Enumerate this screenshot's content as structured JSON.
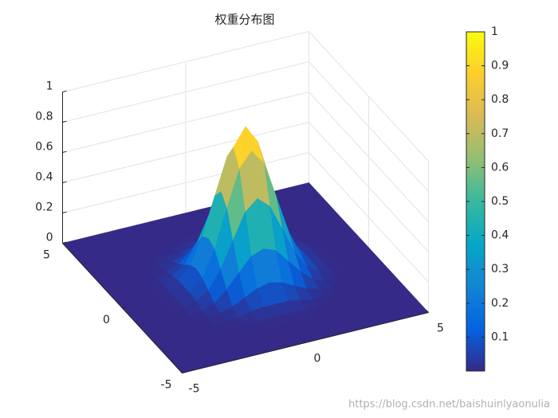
{
  "chart_data": {
    "type": "surface",
    "title": "权重分布图",
    "x": [
      -5,
      -4.5,
      -4,
      -3.5,
      -3,
      -2.5,
      -2,
      -1.5,
      -1,
      -0.5,
      0,
      0.5,
      1,
      1.5,
      2,
      2.5,
      3,
      3.5,
      4,
      4.5,
      5
    ],
    "y": [
      -5,
      -4.5,
      -4,
      -3.5,
      -3,
      -2.5,
      -2,
      -1.5,
      -1,
      -0.5,
      0,
      0.5,
      1,
      1.5,
      2,
      2.5,
      3,
      3.5,
      4,
      4.5,
      5
    ],
    "z": [
      [
        0,
        0,
        0,
        0,
        0,
        0,
        0,
        0,
        0,
        0,
        0,
        0,
        0,
        0,
        0,
        0,
        0,
        0,
        0,
        0,
        0
      ],
      [
        0,
        0,
        0,
        0,
        0,
        0,
        0,
        0,
        0,
        0,
        0,
        0,
        0,
        0,
        0,
        0,
        0,
        0,
        0,
        0,
        0
      ],
      [
        0,
        0,
        0,
        0,
        0,
        0,
        0,
        0,
        0,
        0,
        0,
        0,
        0,
        0,
        0,
        0,
        0,
        0,
        0,
        0,
        0
      ],
      [
        0,
        0,
        0,
        0,
        0,
        0,
        0,
        0,
        0,
        0,
        0,
        0,
        0,
        0,
        0,
        0,
        0,
        0,
        0,
        0,
        0
      ],
      [
        0,
        0,
        0,
        0,
        0,
        0,
        0,
        0,
        0.01,
        0.01,
        0.01,
        0.01,
        0.01,
        0,
        0,
        0,
        0,
        0,
        0,
        0,
        0
      ],
      [
        0,
        0,
        0,
        0,
        0,
        0,
        0.01,
        0.01,
        0.03,
        0.04,
        0.04,
        0.04,
        0.03,
        0.01,
        0.01,
        0,
        0,
        0,
        0,
        0,
        0
      ],
      [
        0,
        0,
        0,
        0,
        0,
        0.01,
        0.02,
        0.04,
        0.08,
        0.12,
        0.14,
        0.12,
        0.08,
        0.04,
        0.02,
        0.01,
        0,
        0,
        0,
        0,
        0
      ],
      [
        0,
        0,
        0,
        0,
        0,
        0.01,
        0.04,
        0.11,
        0.2,
        0.29,
        0.32,
        0.29,
        0.2,
        0.11,
        0.04,
        0.01,
        0,
        0,
        0,
        0,
        0
      ],
      [
        0,
        0,
        0,
        0,
        0.01,
        0.03,
        0.08,
        0.2,
        0.37,
        0.54,
        0.61,
        0.54,
        0.37,
        0.2,
        0.08,
        0.03,
        0.01,
        0,
        0,
        0,
        0
      ],
      [
        0,
        0,
        0,
        0,
        0.01,
        0.04,
        0.12,
        0.29,
        0.54,
        0.78,
        0.88,
        0.78,
        0.54,
        0.29,
        0.12,
        0.04,
        0.01,
        0,
        0,
        0,
        0
      ],
      [
        0,
        0,
        0,
        0,
        0.01,
        0.04,
        0.14,
        0.32,
        0.61,
        0.88,
        1,
        0.88,
        0.61,
        0.32,
        0.14,
        0.04,
        0.01,
        0,
        0,
        0,
        0
      ],
      [
        0,
        0,
        0,
        0,
        0.01,
        0.04,
        0.12,
        0.29,
        0.54,
        0.78,
        0.88,
        0.78,
        0.54,
        0.29,
        0.12,
        0.04,
        0.01,
        0,
        0,
        0,
        0
      ],
      [
        0,
        0,
        0,
        0,
        0.01,
        0.03,
        0.08,
        0.2,
        0.37,
        0.54,
        0.61,
        0.54,
        0.37,
        0.2,
        0.08,
        0.03,
        0.01,
        0,
        0,
        0,
        0
      ],
      [
        0,
        0,
        0,
        0,
        0,
        0.01,
        0.04,
        0.11,
        0.2,
        0.29,
        0.32,
        0.29,
        0.2,
        0.11,
        0.04,
        0.01,
        0,
        0,
        0,
        0,
        0
      ],
      [
        0,
        0,
        0,
        0,
        0,
        0.01,
        0.02,
        0.04,
        0.08,
        0.12,
        0.14,
        0.12,
        0.08,
        0.04,
        0.02,
        0.01,
        0,
        0,
        0,
        0,
        0
      ],
      [
        0,
        0,
        0,
        0,
        0,
        0,
        0.01,
        0.01,
        0.03,
        0.04,
        0.04,
        0.04,
        0.03,
        0.01,
        0.01,
        0,
        0,
        0,
        0,
        0,
        0
      ],
      [
        0,
        0,
        0,
        0,
        0,
        0,
        0,
        0,
        0.01,
        0.01,
        0.01,
        0.01,
        0.01,
        0,
        0,
        0,
        0,
        0,
        0,
        0,
        0
      ],
      [
        0,
        0,
        0,
        0,
        0,
        0,
        0,
        0,
        0,
        0,
        0,
        0,
        0,
        0,
        0,
        0,
        0,
        0,
        0,
        0,
        0
      ],
      [
        0,
        0,
        0,
        0,
        0,
        0,
        0,
        0,
        0,
        0,
        0,
        0,
        0,
        0,
        0,
        0,
        0,
        0,
        0,
        0,
        0
      ],
      [
        0,
        0,
        0,
        0,
        0,
        0,
        0,
        0,
        0,
        0,
        0,
        0,
        0,
        0,
        0,
        0,
        0,
        0,
        0,
        0,
        0
      ],
      [
        0,
        0,
        0,
        0,
        0,
        0,
        0,
        0,
        0,
        0,
        0,
        0,
        0,
        0,
        0,
        0,
        0,
        0,
        0,
        0,
        0
      ]
    ],
    "xlim": [
      -5,
      5
    ],
    "ylim": [
      -5,
      5
    ],
    "zlim": [
      0,
      1
    ],
    "xticks": [
      -5,
      0,
      5
    ],
    "yticks": [
      -5,
      0,
      5
    ],
    "zticks": [
      0,
      0.2,
      0.4,
      0.6,
      0.8,
      1
    ],
    "grid": true,
    "colormap": [
      "#352a87",
      "#0363e1",
      "#1485d4",
      "#06a7c6",
      "#38b99e",
      "#92bf73",
      "#d9ba56",
      "#fcce2e",
      "#f9fb0e"
    ],
    "clim": [
      0,
      1
    ],
    "colorbar_ticks": [
      0.1,
      0.2,
      0.3,
      0.4,
      0.5,
      0.6,
      0.7,
      0.8,
      0.9,
      1
    ]
  },
  "watermark": "https://blog.csdn.net/baishuinlyaonulia"
}
